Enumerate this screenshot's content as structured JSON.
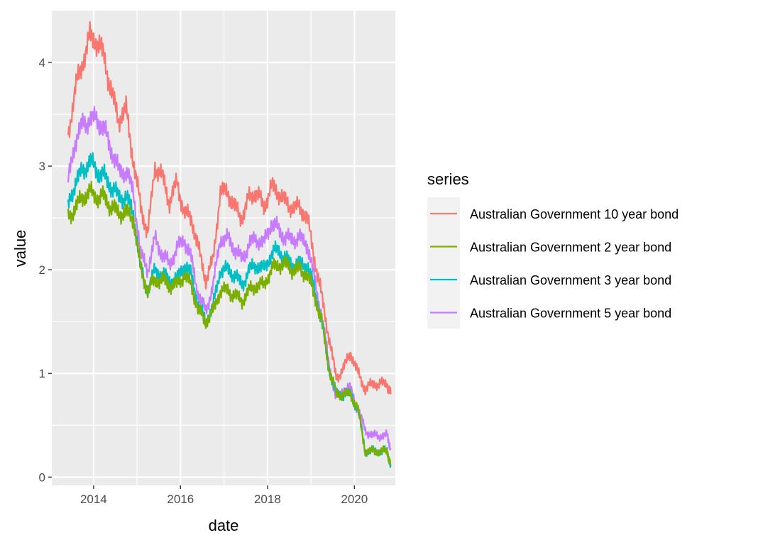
{
  "chart_data": {
    "type": "line",
    "xlabel": "date",
    "ylabel": "value",
    "legend": {
      "title": "series",
      "position": "right"
    },
    "grid": true,
    "xlim": [
      "2013-01-15",
      "2020-12-10"
    ],
    "ylim": [
      -0.08,
      4.5
    ],
    "x_ticks": [
      {
        "date": "2014-01-01",
        "label": "2014"
      },
      {
        "date": "2016-01-01",
        "label": "2016"
      },
      {
        "date": "2018-01-01",
        "label": "2018"
      },
      {
        "date": "2020-01-01",
        "label": "2020"
      }
    ],
    "y_ticks": [
      {
        "value": 0,
        "label": "0"
      },
      {
        "value": 1,
        "label": "1"
      },
      {
        "value": 2,
        "label": "2"
      },
      {
        "value": 3,
        "label": "3"
      },
      {
        "value": 4,
        "label": "4"
      }
    ],
    "x": [
      "2013-06-01",
      "2013-08-01",
      "2013-10-01",
      "2013-12-01",
      "2014-02-01",
      "2014-04-01",
      "2014-06-01",
      "2014-08-01",
      "2014-10-01",
      "2014-12-01",
      "2015-02-01",
      "2015-04-01",
      "2015-06-01",
      "2015-08-01",
      "2015-10-01",
      "2015-12-01",
      "2016-02-01",
      "2016-04-01",
      "2016-06-01",
      "2016-08-01",
      "2016-10-01",
      "2016-12-01",
      "2017-02-01",
      "2017-04-01",
      "2017-06-01",
      "2017-08-01",
      "2017-10-01",
      "2017-12-01",
      "2018-02-01",
      "2018-04-01",
      "2018-06-01",
      "2018-08-01",
      "2018-10-01",
      "2018-12-01",
      "2019-02-01",
      "2019-04-01",
      "2019-06-01",
      "2019-08-01",
      "2019-10-01",
      "2019-12-01",
      "2020-02-01",
      "2020-04-01",
      "2020-06-01",
      "2020-08-01",
      "2020-10-01",
      "2020-11-01"
    ],
    "series": [
      {
        "name": "Australian Government 10 year bond",
        "color": "#F8766D",
        "values": [
          3.3,
          3.75,
          4.0,
          4.25,
          4.2,
          4.05,
          3.7,
          3.45,
          3.55,
          3.05,
          2.6,
          2.35,
          3.0,
          2.9,
          2.65,
          2.85,
          2.55,
          2.5,
          2.2,
          1.9,
          2.1,
          2.75,
          2.75,
          2.6,
          2.5,
          2.7,
          2.75,
          2.6,
          2.8,
          2.75,
          2.65,
          2.6,
          2.6,
          2.5,
          2.1,
          1.75,
          1.35,
          0.95,
          1.05,
          1.2,
          1.0,
          0.85,
          0.9,
          0.9,
          0.9,
          0.8
        ]
      },
      {
        "name": "Australian Government 2 year bond",
        "color": "#7CAE00",
        "values": [
          2.5,
          2.6,
          2.7,
          2.75,
          2.7,
          2.7,
          2.6,
          2.55,
          2.55,
          2.5,
          2.0,
          1.8,
          1.9,
          1.9,
          1.85,
          1.85,
          1.95,
          1.85,
          1.6,
          1.5,
          1.6,
          1.8,
          1.8,
          1.75,
          1.7,
          1.8,
          1.85,
          1.85,
          2.0,
          2.05,
          2.05,
          2.0,
          2.0,
          1.95,
          1.75,
          1.5,
          1.05,
          0.8,
          0.8,
          0.8,
          0.65,
          0.25,
          0.25,
          0.25,
          0.25,
          0.12
        ]
      },
      {
        "name": "Australian Government 3 year bond",
        "color": "#00BFC4",
        "values": [
          2.6,
          2.85,
          2.95,
          3.05,
          2.95,
          2.9,
          2.8,
          2.7,
          2.7,
          2.55,
          2.0,
          1.8,
          2.0,
          1.95,
          1.9,
          1.9,
          2.05,
          1.95,
          1.65,
          1.5,
          1.65,
          2.0,
          2.0,
          1.95,
          1.85,
          2.0,
          2.05,
          2.0,
          2.15,
          2.2,
          2.1,
          2.05,
          2.05,
          2.05,
          1.8,
          1.5,
          1.05,
          0.8,
          0.8,
          0.8,
          0.65,
          0.25,
          0.25,
          0.25,
          0.25,
          0.12
        ]
      },
      {
        "name": "Australian Government 5 year bond",
        "color": "#C77CFF",
        "values": [
          2.85,
          3.25,
          3.4,
          3.45,
          3.45,
          3.35,
          3.15,
          2.95,
          2.95,
          2.75,
          2.15,
          2.0,
          2.3,
          2.15,
          2.05,
          2.2,
          2.3,
          2.1,
          1.75,
          1.6,
          1.85,
          2.3,
          2.3,
          2.2,
          2.1,
          2.25,
          2.3,
          2.25,
          2.45,
          2.4,
          2.3,
          2.3,
          2.3,
          2.25,
          1.9,
          1.55,
          1.1,
          0.75,
          0.85,
          0.85,
          0.65,
          0.45,
          0.4,
          0.4,
          0.4,
          0.28
        ]
      }
    ]
  }
}
